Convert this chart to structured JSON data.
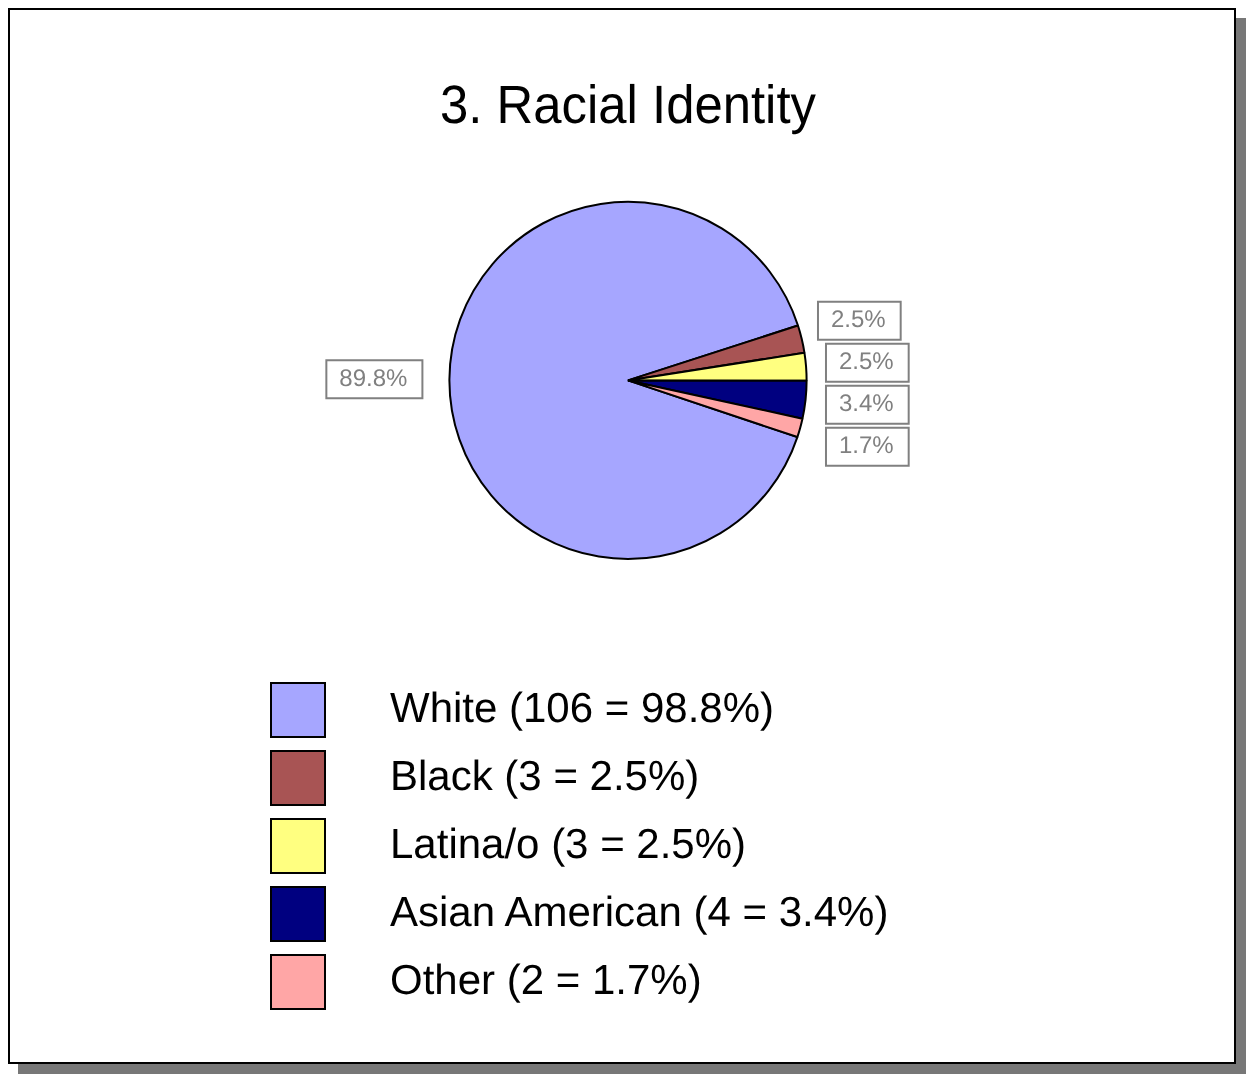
{
  "chart_data": {
    "type": "pie",
    "title": "3. Racial Identity",
    "categories": [
      "White (106 = 98.8%)",
      "Black (3 = 2.5%)",
      "Latina/o (3 = 2.5%)",
      "Asian American (4 = 3.4%)",
      "Other (2 = 1.7%)"
    ],
    "values": [
      89.8,
      2.5,
      2.5,
      3.4,
      1.7
    ],
    "colors": [
      "#a6a6ff",
      "#a85454",
      "#ffff80",
      "#000080",
      "#ffa6a6"
    ],
    "value_labels": [
      "89.8%",
      "2.5%",
      "2.5%",
      "3.4%",
      "1.7%"
    ],
    "legend": "bottom"
  }
}
